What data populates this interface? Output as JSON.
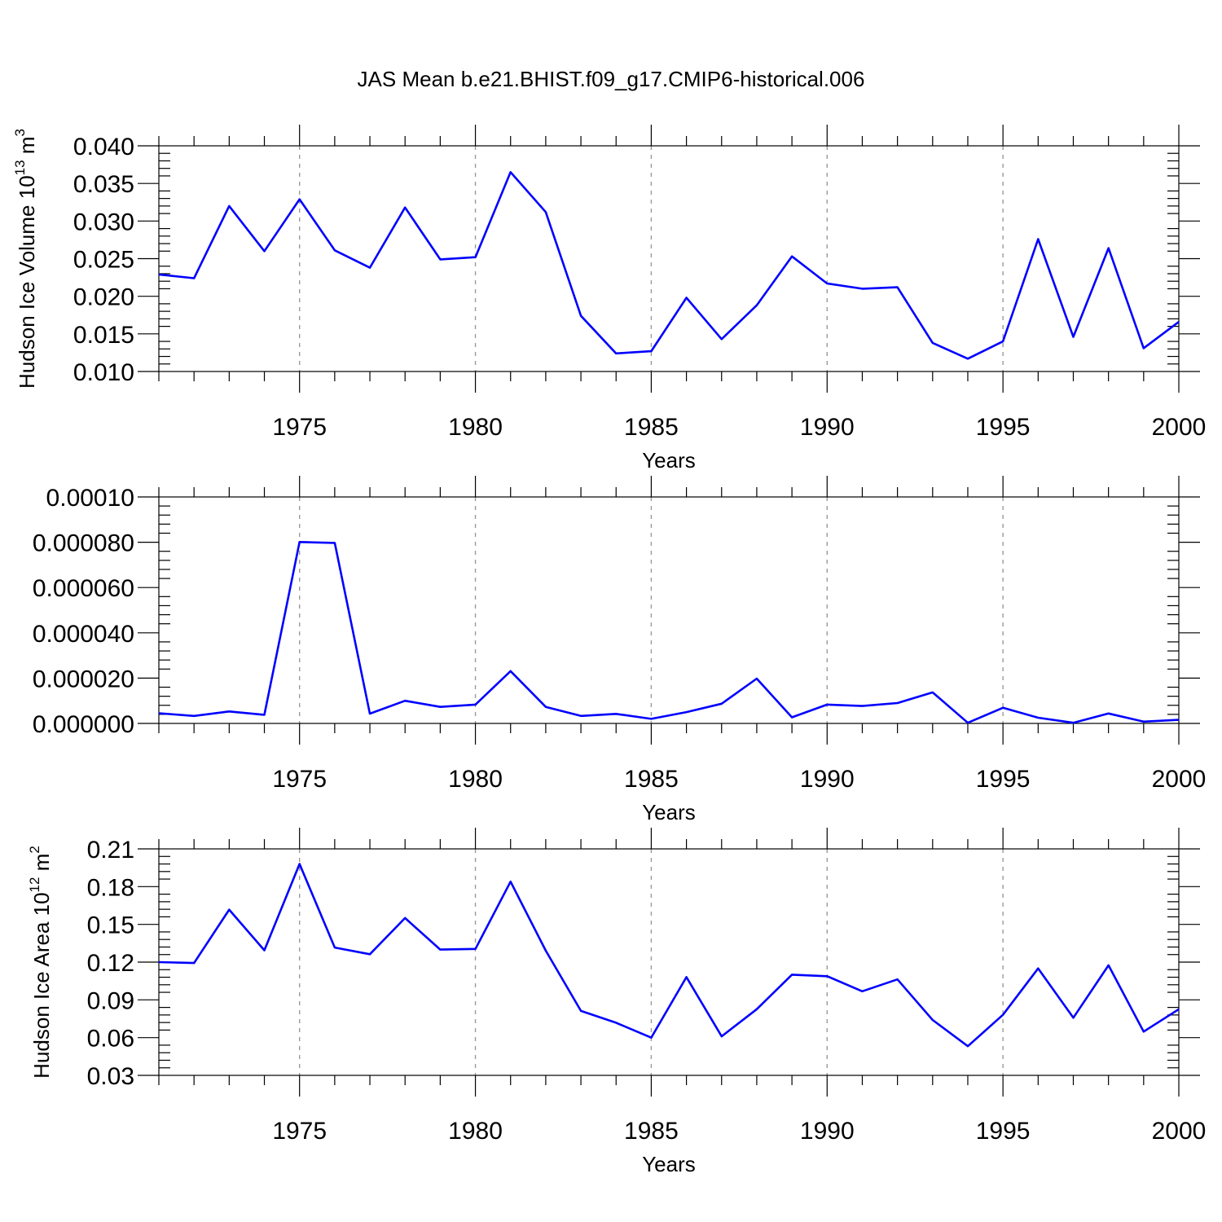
{
  "figure": {
    "title": "JAS Mean b.e21.BHIST.f09_g17.CMIP6-historical.006"
  },
  "chart_data": [
    {
      "type": "line",
      "title": "",
      "xlabel": "Years",
      "ylabel": {
        "main": "Hudson Ice Volume 10",
        "exp": "13",
        "unit": " m",
        "unit_exp": "3"
      },
      "xlim": [
        1971,
        2000
      ],
      "ylim": [
        0.01,
        0.04
      ],
      "xticks": [
        1975,
        1980,
        1985,
        1990,
        1995,
        2000
      ],
      "xtick_labels": [
        "1975",
        "1980",
        "1985",
        "1990",
        "1995",
        "2000"
      ],
      "yticks": [
        0.01,
        0.015,
        0.02,
        0.025,
        0.03,
        0.035,
        0.04
      ],
      "ytick_labels": [
        "0.010",
        "0.015",
        "0.020",
        "0.025",
        "0.030",
        "0.035",
        "0.040"
      ],
      "grid": "vertical dashed at major x ticks",
      "color": "#0000ff",
      "series": [
        {
          "x": [
            1971,
            1972,
            1973,
            1974,
            1975,
            1976,
            1977,
            1978,
            1979,
            1980,
            1981,
            1982,
            1983,
            1984,
            1985,
            1986,
            1987,
            1988,
            1989,
            1990,
            1991,
            1992,
            1993,
            1994,
            1995,
            1996,
            1997,
            1998,
            1999,
            2000
          ],
          "values": [
            0.0229,
            0.0224,
            0.032,
            0.026,
            0.0329,
            0.0261,
            0.0238,
            0.0318,
            0.0249,
            0.0252,
            0.0365,
            0.0312,
            0.0174,
            0.0124,
            0.0127,
            0.0198,
            0.0143,
            0.0188,
            0.0253,
            0.0217,
            0.021,
            0.0212,
            0.0138,
            0.0117,
            0.014,
            0.0276,
            0.0146,
            0.0264,
            0.0131,
            0.0166
          ]
        }
      ]
    },
    {
      "type": "line",
      "title": "",
      "xlabel": "Years",
      "ylabel": "",
      "xlim": [
        1971,
        2000
      ],
      "ylim": [
        0.0,
        0.0001
      ],
      "xticks": [
        1975,
        1980,
        1985,
        1990,
        1995,
        2000
      ],
      "xtick_labels": [
        "1975",
        "1980",
        "1985",
        "1990",
        "1995",
        "2000"
      ],
      "yticks": [
        0.0,
        2e-05,
        4e-05,
        6e-05,
        8e-05,
        0.0001
      ],
      "ytick_labels": [
        "0.000000",
        "0.000020",
        "0.000040",
        "0.000060",
        "0.000080",
        "0.00010"
      ],
      "grid": "vertical dashed at major x ticks",
      "color": "#0000ff",
      "series": [
        {
          "x": [
            1971,
            1972,
            1973,
            1974,
            1975,
            1976,
            1977,
            1978,
            1979,
            1980,
            1981,
            1982,
            1983,
            1984,
            1985,
            1986,
            1987,
            1988,
            1989,
            1990,
            1991,
            1992,
            1993,
            1994,
            1995,
            1996,
            1997,
            1998,
            1999,
            2000
          ],
          "values": [
            4.5e-06,
            3.3e-06,
            5.3e-06,
            3.8e-06,
            8.01e-05,
            7.97e-05,
            4.3e-06,
            1e-05,
            7.3e-06,
            8.3e-06,
            2.31e-05,
            7.3e-06,
            3.3e-06,
            4.2e-06,
            2e-06,
            5e-06,
            8.7e-06,
            1.98e-05,
            2.7e-06,
            8.3e-06,
            7.7e-06,
            9e-06,
            1.37e-05,
            3e-07,
            6.9e-06,
            2.5e-06,
            3e-07,
            4.4e-06,
            8e-07,
            1.6e-06
          ]
        }
      ]
    },
    {
      "type": "line",
      "title": "",
      "xlabel": "Years",
      "ylabel": {
        "main": "Hudson Ice Area 10",
        "exp": "12",
        "unit": " m",
        "unit_exp": "2"
      },
      "xlim": [
        1971,
        2000
      ],
      "ylim": [
        0.03,
        0.21
      ],
      "xticks": [
        1975,
        1980,
        1985,
        1990,
        1995,
        2000
      ],
      "xtick_labels": [
        "1975",
        "1980",
        "1985",
        "1990",
        "1995",
        "2000"
      ],
      "yticks": [
        0.03,
        0.06,
        0.09,
        0.12,
        0.15,
        0.18,
        0.21
      ],
      "ytick_labels": [
        "0.03",
        "0.06",
        "0.09",
        "0.12",
        "0.15",
        "0.18",
        "0.21"
      ],
      "grid": "vertical dashed at major x ticks",
      "color": "#0000ff",
      "series": [
        {
          "x": [
            1971,
            1972,
            1973,
            1974,
            1975,
            1976,
            1977,
            1978,
            1979,
            1980,
            1981,
            1982,
            1983,
            1984,
            1985,
            1986,
            1987,
            1988,
            1989,
            1990,
            1991,
            1992,
            1993,
            1994,
            1995,
            1996,
            1997,
            1998,
            1999,
            2000
          ],
          "values": [
            0.12,
            0.1193,
            0.1617,
            0.1294,
            0.198,
            0.1316,
            0.1263,
            0.155,
            0.13,
            0.1305,
            0.184,
            0.1291,
            0.0812,
            0.0718,
            0.06,
            0.1081,
            0.061,
            0.0826,
            0.11,
            0.1088,
            0.0968,
            0.1063,
            0.074,
            0.0532,
            0.0781,
            0.115,
            0.0758,
            0.1175,
            0.0648,
            0.0826
          ]
        }
      ]
    }
  ]
}
